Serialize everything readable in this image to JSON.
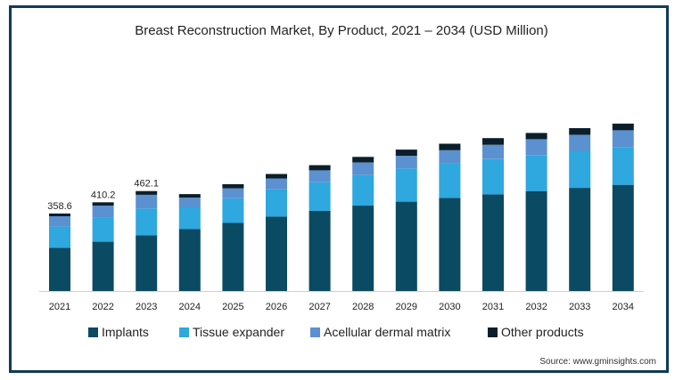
{
  "chart_data": {
    "type": "bar",
    "stacked": true,
    "title": "Breast Reconstruction Market, By Product, 2021 – 2034 (USD Million)",
    "categories": [
      "2021",
      "2022",
      "2023",
      "2024",
      "2025",
      "2026",
      "2027",
      "2028",
      "2029",
      "2030",
      "2031",
      "2032",
      "2033",
      "2034"
    ],
    "series": [
      {
        "name": "Implants",
        "color": "#0b4a63",
        "values": [
          200,
          228,
          258,
          286,
          315,
          344,
          371,
          395,
          413,
          431,
          447,
          462,
          477,
          491
        ]
      },
      {
        "name": "Tissue expander",
        "color": "#2fa7df",
        "values": [
          98,
          112,
          124,
          103,
          114,
          126,
          132,
          141,
          154,
          158,
          163,
          167,
          171,
          175
        ]
      },
      {
        "name": "Acellular dermal matrix",
        "color": "#5b91d0",
        "values": [
          48,
          55,
          63,
          42,
          46,
          50,
          55,
          58,
          58,
          62,
          66,
          73,
          74,
          77
        ]
      },
      {
        "name": "Other products",
        "color": "#0a1f2b",
        "values": [
          12.6,
          15.2,
          17.1,
          17,
          19,
          21,
          24,
          26,
          29,
          30,
          31,
          29,
          31,
          31
        ]
      }
    ],
    "data_labels": [
      {
        "category": "2021",
        "text": "358.6"
      },
      {
        "category": "2022",
        "text": "410.2"
      },
      {
        "category": "2023",
        "text": "462.1"
      }
    ],
    "ylim": [
      0,
      800
    ],
    "grid": false,
    "legend_position": "bottom"
  },
  "source": "Source: www.gminsights.com"
}
